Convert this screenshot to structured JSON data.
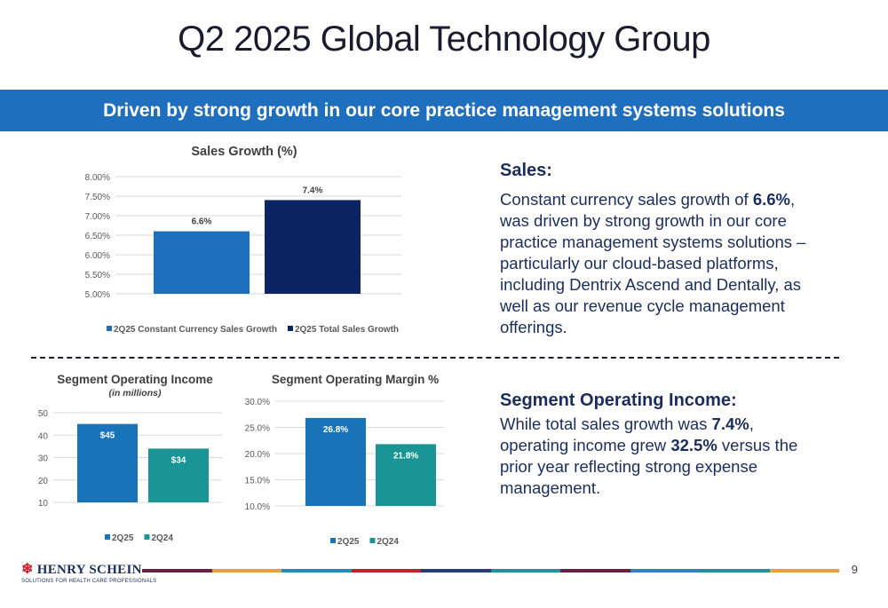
{
  "page": {
    "title": "Q2 2025 Global Technology Group",
    "banner": "Driven by strong growth in our core practice management systems solutions",
    "page_number": "9"
  },
  "sales_section": {
    "heading": "Sales:",
    "body_parts": [
      {
        "text": "Constant currency sales growth of ",
        "bold": false
      },
      {
        "text": "6.6%",
        "bold": true
      },
      {
        "text": ", was driven by strong growth in our core practice management systems solutions – particularly our cloud-based platforms, including Dentrix Ascend and Dentally, as well as our revenue cycle management offerings.",
        "bold": false
      }
    ]
  },
  "income_section": {
    "heading": "Segment Operating Income:",
    "body_parts": [
      {
        "text": "While total sales growth was ",
        "bold": false
      },
      {
        "text": "7.4%",
        "bold": true
      },
      {
        "text": ", operating income grew ",
        "bold": false
      },
      {
        "text": "32.5%",
        "bold": true
      },
      {
        "text": " versus the prior year reflecting strong expense management.",
        "bold": false
      }
    ]
  },
  "logo": {
    "name": "HENRY SCHEIN",
    "tagline": "SOLUTIONS FOR HEALTH CARE PROFESSIONALS"
  },
  "colors": {
    "banner": "#1f6fbf",
    "bar_light_blue": "#1f6fbf",
    "bar_navy": "#0c2461",
    "bar_2q25": "#1873b8",
    "bar_2q24": "#1a9595",
    "footer_segments": [
      "#6a1f4a",
      "#e8a03a",
      "#1c8fb5",
      "#c8202f",
      "#243a7a",
      "#1a9595",
      "#6a1f4a",
      "#2f80c4",
      "#1a9595",
      "#e8a03a"
    ]
  },
  "chart_data": [
    {
      "type": "bar",
      "title": "Sales Growth (%)",
      "subtitle": "",
      "categories": [
        ""
      ],
      "series": [
        {
          "name": "2Q25 Constant Currency Sales Growth",
          "values": [
            6.6
          ],
          "color": "#1f6fbf"
        },
        {
          "name": "2Q25 Total Sales Growth",
          "values": [
            7.4
          ],
          "color": "#0c2461"
        }
      ],
      "data_labels": [
        "6.6%",
        "7.4%"
      ],
      "ylim": [
        5.0,
        8.0
      ],
      "yticks": [
        5.0,
        5.5,
        6.0,
        6.5,
        7.0,
        7.5,
        8.0
      ],
      "ytick_labels": [
        "5.00%",
        "5.50%",
        "6.00%",
        "6.50%",
        "7.00%",
        "7.50%",
        "8.00%"
      ],
      "grid": true,
      "legend": "bottom"
    },
    {
      "type": "bar",
      "title": "Segment Operating Income",
      "subtitle": "(in millions)",
      "categories": [
        ""
      ],
      "series": [
        {
          "name": "2Q25",
          "values": [
            45
          ],
          "color": "#1873b8"
        },
        {
          "name": "2Q24",
          "values": [
            34
          ],
          "color": "#1a9595"
        }
      ],
      "data_labels": [
        "$45",
        "$34"
      ],
      "ylim": [
        10,
        50
      ],
      "yticks": [
        10,
        20,
        30,
        40,
        50
      ],
      "ytick_labels": [
        "10",
        "20",
        "30",
        "40",
        "50"
      ],
      "grid": true,
      "legend": "bottom"
    },
    {
      "type": "bar",
      "title": "Segment Operating Margin %",
      "subtitle": "",
      "categories": [
        ""
      ],
      "series": [
        {
          "name": "2Q25",
          "values": [
            26.8
          ],
          "color": "#1873b8"
        },
        {
          "name": "2Q24",
          "values": [
            21.8
          ],
          "color": "#1a9595"
        }
      ],
      "data_labels": [
        "26.8%",
        "21.8%"
      ],
      "ylim": [
        10,
        30
      ],
      "yticks": [
        10,
        15,
        20,
        25,
        30
      ],
      "ytick_labels": [
        "10.0%",
        "15.0%",
        "20.0%",
        "25.0%",
        "30.0%"
      ],
      "grid": true,
      "legend": "bottom"
    }
  ]
}
